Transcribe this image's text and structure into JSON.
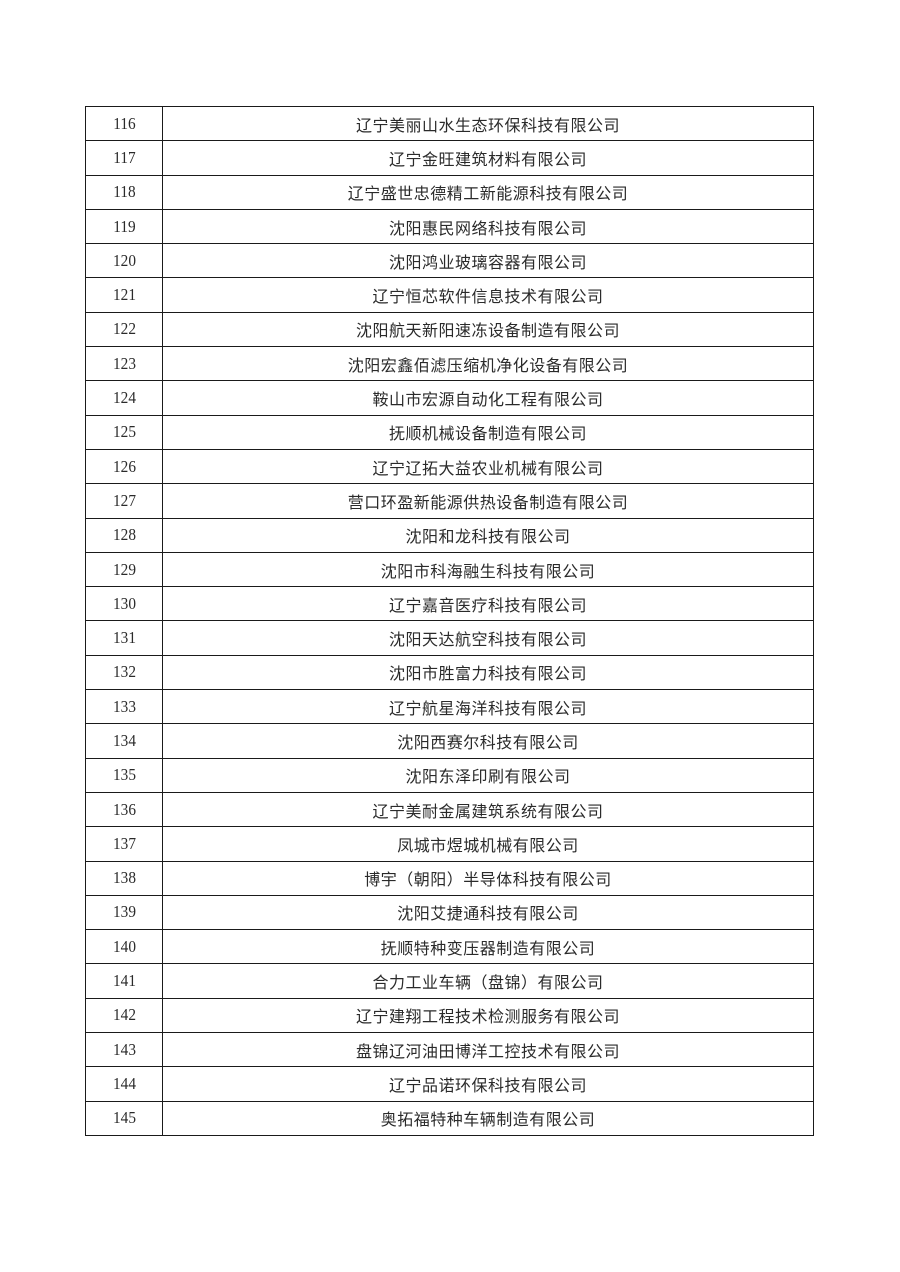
{
  "table": {
    "rows": [
      {
        "no": "116",
        "name": "辽宁美丽山水生态环保科技有限公司"
      },
      {
        "no": "117",
        "name": "辽宁金旺建筑材料有限公司"
      },
      {
        "no": "118",
        "name": "辽宁盛世忠德精工新能源科技有限公司"
      },
      {
        "no": "119",
        "name": "沈阳惠民网络科技有限公司"
      },
      {
        "no": "120",
        "name": "沈阳鸿业玻璃容器有限公司"
      },
      {
        "no": "121",
        "name": "辽宁恒芯软件信息技术有限公司"
      },
      {
        "no": "122",
        "name": "沈阳航天新阳速冻设备制造有限公司"
      },
      {
        "no": "123",
        "name": "沈阳宏鑫佰滤压缩机净化设备有限公司"
      },
      {
        "no": "124",
        "name": "鞍山市宏源自动化工程有限公司"
      },
      {
        "no": "125",
        "name": "抚顺机械设备制造有限公司"
      },
      {
        "no": "126",
        "name": "辽宁辽拓大益农业机械有限公司"
      },
      {
        "no": "127",
        "name": "营口环盈新能源供热设备制造有限公司"
      },
      {
        "no": "128",
        "name": "沈阳和龙科技有限公司"
      },
      {
        "no": "129",
        "name": "沈阳市科海融生科技有限公司"
      },
      {
        "no": "130",
        "name": "辽宁嘉音医疗科技有限公司"
      },
      {
        "no": "131",
        "name": "沈阳天达航空科技有限公司"
      },
      {
        "no": "132",
        "name": "沈阳市胜富力科技有限公司"
      },
      {
        "no": "133",
        "name": "辽宁航星海洋科技有限公司"
      },
      {
        "no": "134",
        "name": "沈阳西赛尔科技有限公司"
      },
      {
        "no": "135",
        "name": "沈阳东泽印刷有限公司"
      },
      {
        "no": "136",
        "name": "辽宁美耐金属建筑系统有限公司"
      },
      {
        "no": "137",
        "name": "凤城市煜城机械有限公司"
      },
      {
        "no": "138",
        "name": "博宇（朝阳）半导体科技有限公司"
      },
      {
        "no": "139",
        "name": "沈阳艾捷通科技有限公司"
      },
      {
        "no": "140",
        "name": "抚顺特种变压器制造有限公司"
      },
      {
        "no": "141",
        "name": "合力工业车辆（盘锦）有限公司"
      },
      {
        "no": "142",
        "name": "辽宁建翔工程技术检测服务有限公司"
      },
      {
        "no": "143",
        "name": "盘锦辽河油田博洋工控技术有限公司"
      },
      {
        "no": "144",
        "name": "辽宁品诺环保科技有限公司"
      },
      {
        "no": "145",
        "name": "奥拓福特种车辆制造有限公司"
      }
    ]
  }
}
